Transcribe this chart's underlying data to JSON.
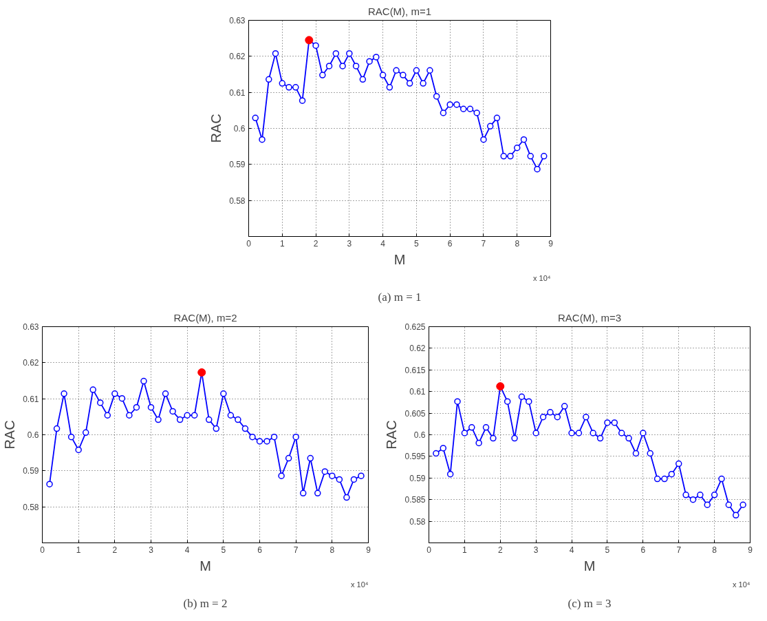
{
  "chart_data": [
    {
      "type": "line",
      "title": "RAC(M), m=1",
      "xlabel": "M",
      "ylabel": "RAC",
      "x": [
        0.2,
        0.4,
        0.6,
        0.8,
        1.0,
        1.2,
        1.4,
        1.6,
        1.8,
        2.0,
        2.2,
        2.4,
        2.6,
        2.8,
        3.0,
        3.2,
        3.4,
        3.6,
        3.8,
        4.0,
        4.2,
        4.4,
        4.6,
        4.8,
        5.0,
        5.2,
        5.4,
        5.6,
        5.8,
        6.0,
        6.2,
        6.4,
        6.6,
        6.8,
        7.0,
        7.2,
        7.4,
        7.6,
        7.8,
        8.0,
        8.2,
        8.4,
        8.6,
        8.8
      ],
      "series": [
        {
          "color": "#0000ff",
          "values": [
            0.6029,
            0.5969,
            0.6136,
            0.6208,
            0.6125,
            0.6114,
            0.6114,
            0.6077,
            0.6245,
            0.623,
            0.6148,
            0.6173,
            0.6208,
            0.6173,
            0.6208,
            0.6173,
            0.6136,
            0.6186,
            0.6198,
            0.6148,
            0.6114,
            0.6161,
            0.6148,
            0.6125,
            0.6161,
            0.6125,
            0.6161,
            0.6089,
            0.6043,
            0.6066,
            0.6066,
            0.6054,
            0.6054,
            0.6043,
            0.5969,
            0.6006,
            0.6029,
            0.5923,
            0.5923,
            0.5946,
            0.5969,
            0.5923,
            0.5887,
            0.5923
          ]
        },
        {
          "type": "scatter",
          "color": "#ff0000",
          "x": [
            1.8
          ],
          "values": [
            0.6245
          ]
        }
      ],
      "marker": "circle",
      "grid": true,
      "xlim": [
        0,
        9
      ],
      "xticks": [
        0,
        1,
        2,
        3,
        4,
        5,
        6,
        7,
        8,
        9
      ],
      "ylim": [
        0.57,
        0.63
      ],
      "yticks": [
        0.58,
        0.59,
        0.6,
        0.61,
        0.62,
        0.63
      ],
      "annotations": [
        "x 10⁴",
        "(a) m = 1"
      ]
    },
    {
      "type": "line",
      "title": "RAC(M), m=2",
      "xlabel": "M",
      "ylabel": "RAC",
      "x": [
        0.2,
        0.4,
        0.6,
        0.8,
        1.0,
        1.2,
        1.4,
        1.6,
        1.8,
        2.0,
        2.2,
        2.4,
        2.6,
        2.8,
        3.0,
        3.2,
        3.4,
        3.6,
        3.8,
        4.0,
        4.2,
        4.4,
        4.6,
        4.8,
        5.0,
        5.2,
        5.4,
        5.6,
        5.8,
        6.0,
        6.2,
        6.4,
        6.6,
        6.8,
        7.0,
        7.2,
        7.4,
        7.6,
        7.8,
        8.0,
        8.2,
        8.4,
        8.6,
        8.8
      ],
      "series": [
        {
          "color": "#0000ff",
          "values": [
            0.5863,
            0.6017,
            0.6114,
            0.5994,
            0.5958,
            0.6006,
            0.6125,
            0.6089,
            0.6054,
            0.6114,
            0.6101,
            0.6054,
            0.6076,
            0.6149,
            0.6076,
            0.6042,
            0.6114,
            0.6065,
            0.6042,
            0.6054,
            0.6054,
            0.6173,
            0.6042,
            0.6017,
            0.6114,
            0.6054,
            0.6042,
            0.6017,
            0.5994,
            0.5982,
            0.5982,
            0.5994,
            0.5886,
            0.5935,
            0.5994,
            0.5838,
            0.5935,
            0.5838,
            0.5898,
            0.5886,
            0.5876,
            0.5826,
            0.5876,
            0.5886
          ]
        },
        {
          "type": "scatter",
          "color": "#ff0000",
          "x": [
            4.4
          ],
          "values": [
            0.6173
          ]
        }
      ],
      "marker": "circle",
      "grid": true,
      "xlim": [
        0,
        9
      ],
      "xticks": [
        0,
        1,
        2,
        3,
        4,
        5,
        6,
        7,
        8,
        9
      ],
      "ylim": [
        0.57,
        0.63
      ],
      "yticks": [
        0.58,
        0.59,
        0.6,
        0.61,
        0.62,
        0.63
      ],
      "annotations": [
        "x 10⁴",
        "(b) m = 2"
      ]
    },
    {
      "type": "line",
      "title": "RAC(M), m=3",
      "xlabel": "M",
      "ylabel": "RAC",
      "x": [
        0.2,
        0.4,
        0.6,
        0.8,
        1.0,
        1.2,
        1.4,
        1.6,
        1.8,
        2.0,
        2.2,
        2.4,
        2.6,
        2.8,
        3.0,
        3.2,
        3.4,
        3.6,
        3.8,
        4.0,
        4.2,
        4.4,
        4.6,
        4.8,
        5.0,
        5.2,
        5.4,
        5.6,
        5.8,
        6.0,
        6.2,
        6.4,
        6.6,
        6.8,
        7.0,
        7.2,
        7.4,
        7.6,
        7.8,
        8.0,
        8.2,
        8.4,
        8.6,
        8.8
      ],
      "series": [
        {
          "color": "#0000ff",
          "values": [
            0.5957,
            0.5969,
            0.5909,
            0.6077,
            0.6004,
            0.6017,
            0.5981,
            0.6017,
            0.5992,
            0.6112,
            0.6077,
            0.5992,
            0.6088,
            0.6077,
            0.6004,
            0.6041,
            0.6052,
            0.6041,
            0.6066,
            0.6004,
            0.6004,
            0.6041,
            0.6004,
            0.5992,
            0.6028,
            0.6028,
            0.6004,
            0.5992,
            0.5957,
            0.6004,
            0.5957,
            0.5898,
            0.5898,
            0.5909,
            0.5933,
            0.5861,
            0.585,
            0.5861,
            0.5838,
            0.5861,
            0.5898,
            0.5838,
            0.5814,
            0.5838
          ]
        },
        {
          "type": "scatter",
          "color": "#ff0000",
          "x": [
            2.0
          ],
          "values": [
            0.6112
          ]
        }
      ],
      "marker": "circle",
      "grid": true,
      "xlim": [
        0,
        9
      ],
      "xticks": [
        0,
        1,
        2,
        3,
        4,
        5,
        6,
        7,
        8,
        9
      ],
      "ylim": [
        0.575,
        0.625
      ],
      "yticks": [
        0.58,
        0.585,
        0.59,
        0.595,
        0.6,
        0.605,
        0.61,
        0.615,
        0.62,
        0.625
      ],
      "annotations": [
        "x 10⁴",
        "(c) m = 3"
      ]
    }
  ]
}
